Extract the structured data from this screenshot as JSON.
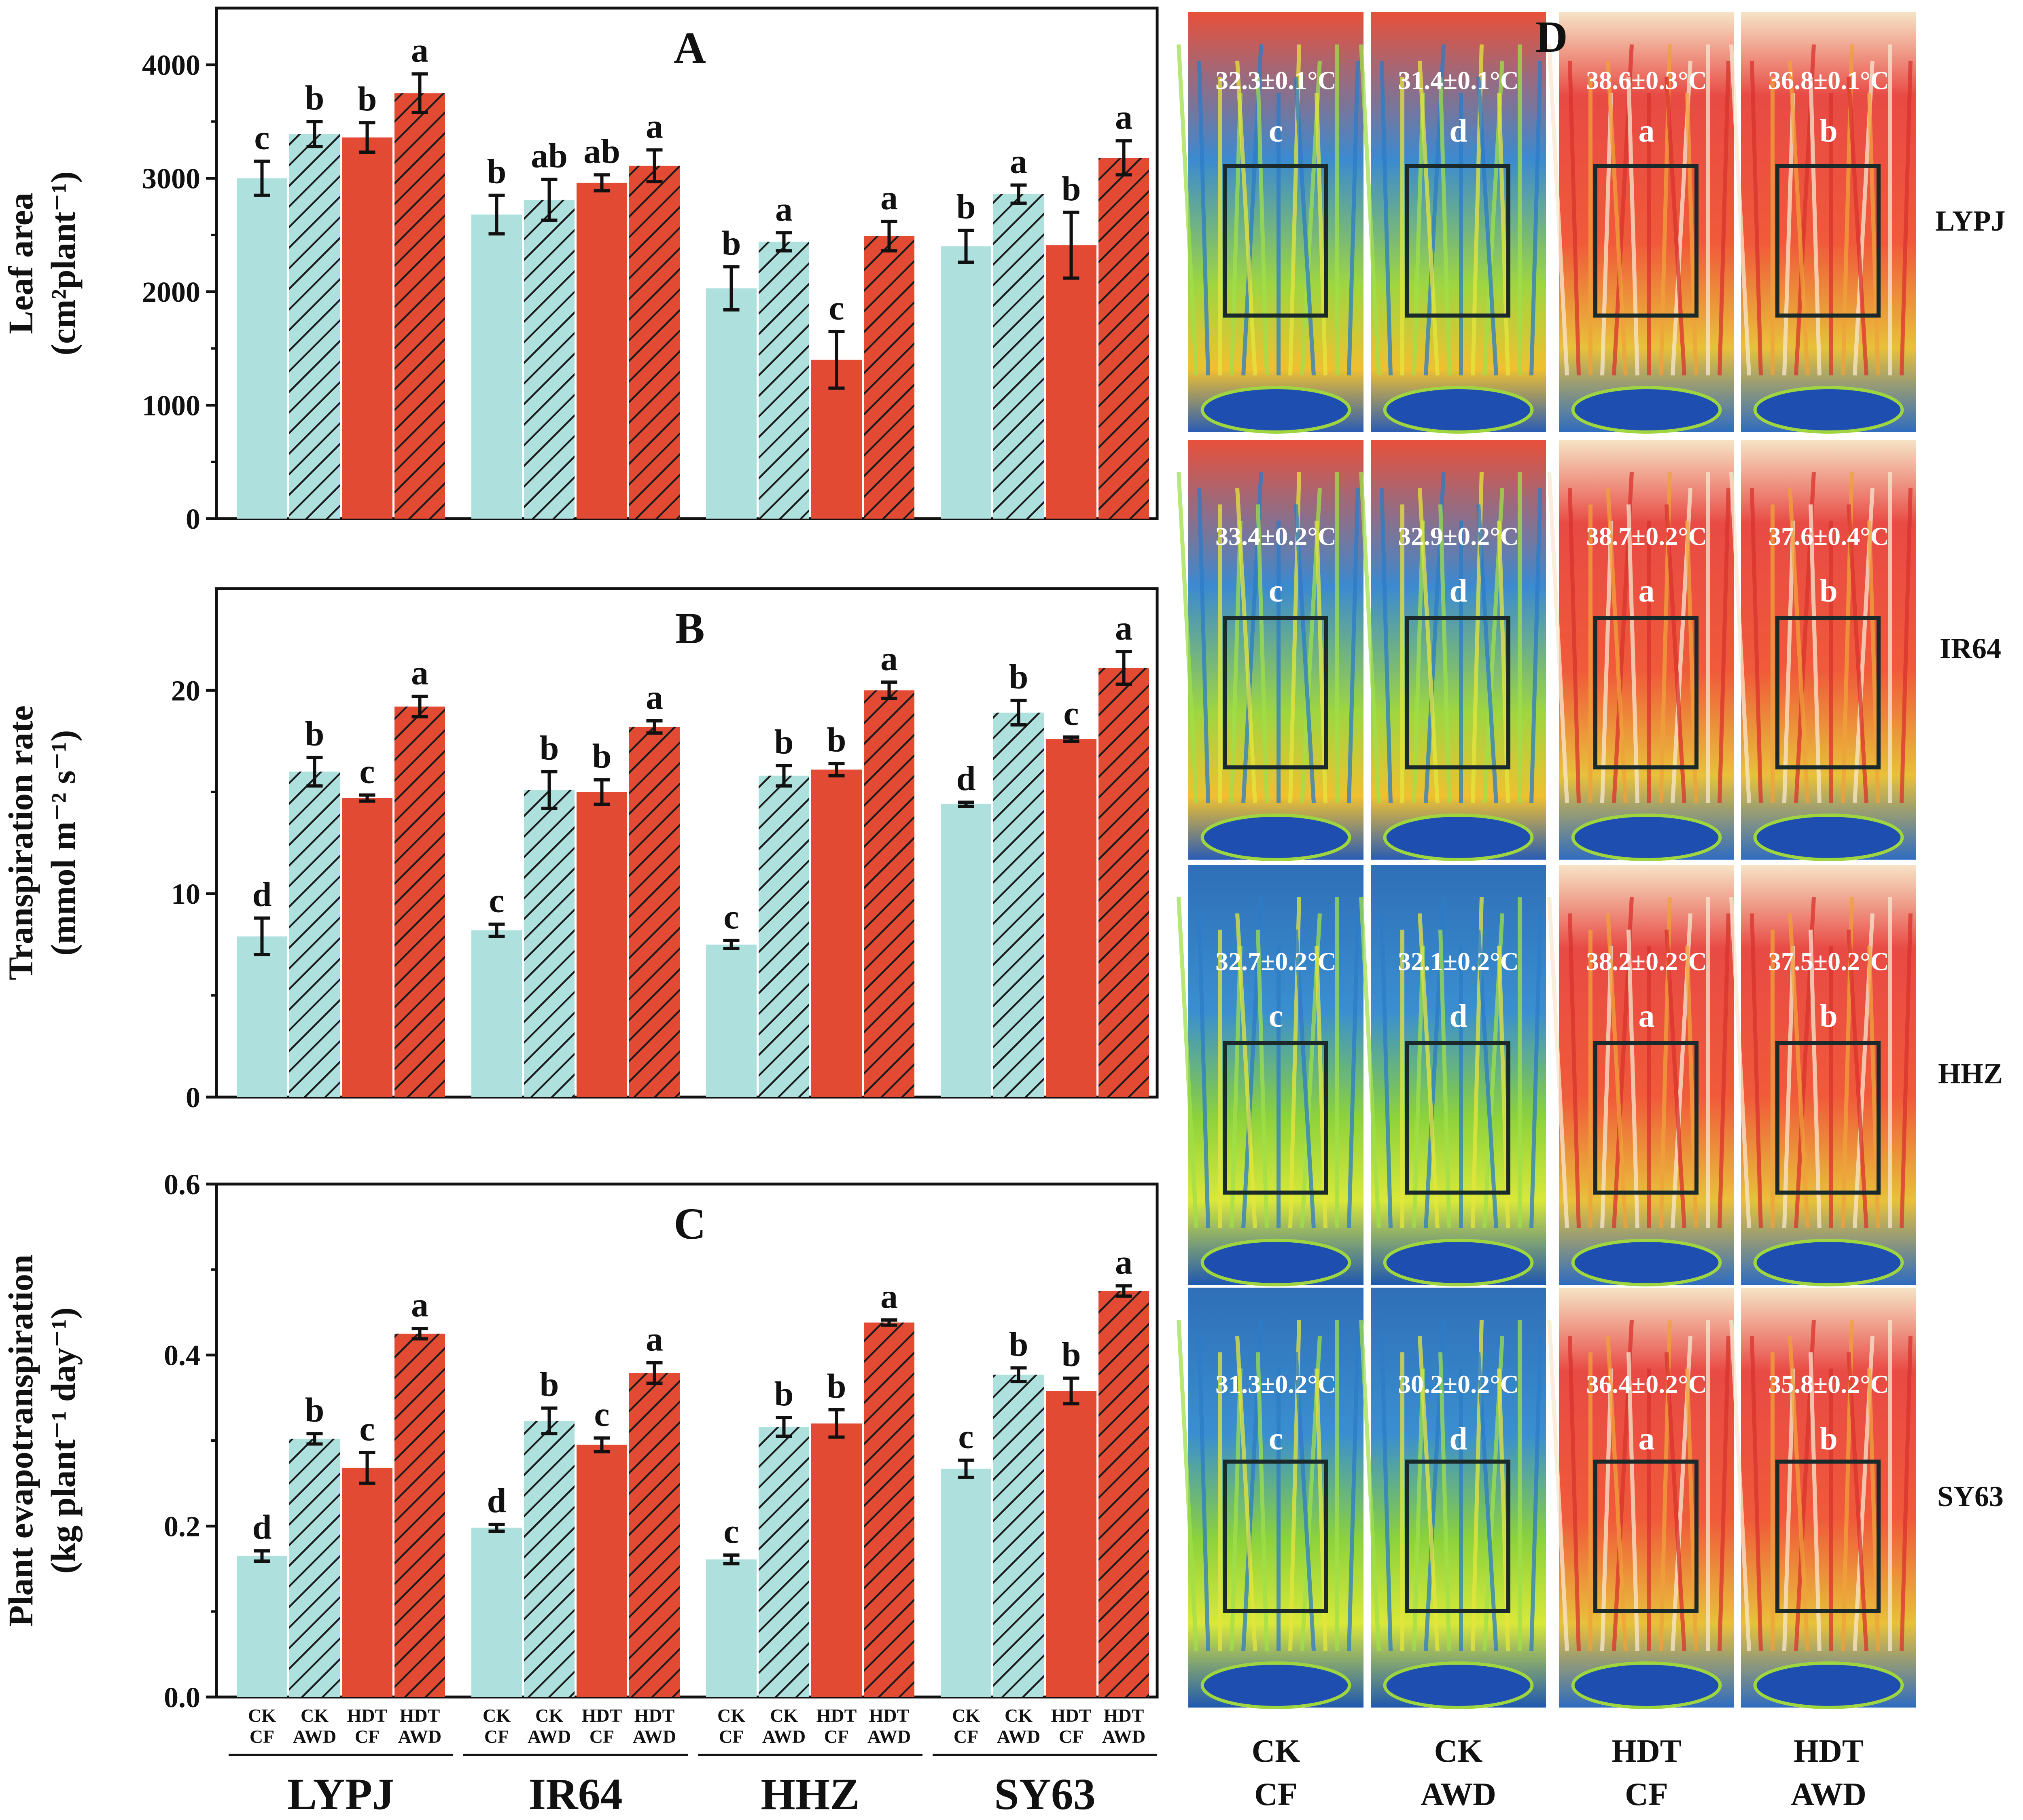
{
  "colors": {
    "ck": "#aee0de",
    "hdt": "#e34a33",
    "axis": "#111111",
    "frame": "#1a2a2a"
  },
  "groups": [
    "LYPJ",
    "IR64",
    "HHZ",
    "SY63"
  ],
  "treatments": [
    {
      "line1": "CK",
      "line2": "CF",
      "color": "ck",
      "hatch": false
    },
    {
      "line1": "CK",
      "line2": "AWD",
      "color": "ck",
      "hatch": true
    },
    {
      "line1": "HDT",
      "line2": "CF",
      "color": "hdt",
      "hatch": false
    },
    {
      "line1": "HDT",
      "line2": "AWD",
      "color": "hdt",
      "hatch": true
    }
  ],
  "chart_data": [
    {
      "type": "bar",
      "panel": "A",
      "ylabel_line1": "Leaf area",
      "ylabel_line2": "(cm²plant⁻¹)",
      "ylim": [
        0,
        4500
      ],
      "yticks": [
        0,
        1000,
        2000,
        3000,
        4000
      ],
      "ytick_labels": [
        "0",
        "1000",
        "2000",
        "3000",
        "4000"
      ],
      "values": [
        [
          3000,
          3390,
          3360,
          3750
        ],
        [
          2680,
          2810,
          2960,
          3110
        ],
        [
          2030,
          2440,
          1400,
          2490
        ],
        [
          2400,
          2860,
          2410,
          3180
        ]
      ],
      "errors": [
        [
          150,
          110,
          130,
          170
        ],
        [
          170,
          180,
          70,
          140
        ],
        [
          190,
          80,
          250,
          130
        ],
        [
          140,
          80,
          290,
          150
        ]
      ],
      "letters": [
        [
          "c",
          "b",
          "b",
          "a"
        ],
        [
          "b",
          "ab",
          "ab",
          "a"
        ],
        [
          "b",
          "a",
          "c",
          "a"
        ],
        [
          "b",
          "a",
          "b",
          "a"
        ]
      ]
    },
    {
      "type": "bar",
      "panel": "B",
      "ylabel_line1": "Transpiration rate",
      "ylabel_line2": "(mmol m⁻² s⁻¹)",
      "ylim": [
        0,
        25
      ],
      "yticks": [
        0,
        10,
        20
      ],
      "ytick_labels": [
        "0",
        "10",
        "20"
      ],
      "values": [
        [
          7.9,
          16.0,
          14.7,
          19.2
        ],
        [
          8.2,
          15.1,
          15.0,
          18.2
        ],
        [
          7.5,
          15.8,
          16.1,
          20.0
        ],
        [
          14.4,
          18.9,
          17.6,
          21.1
        ]
      ],
      "errors": [
        [
          0.9,
          0.7,
          0.15,
          0.5
        ],
        [
          0.3,
          0.9,
          0.6,
          0.3
        ],
        [
          0.2,
          0.5,
          0.3,
          0.4
        ],
        [
          0.1,
          0.6,
          0.1,
          0.8
        ]
      ],
      "letters": [
        [
          "d",
          "b",
          "c",
          "a"
        ],
        [
          "c",
          "b",
          "b",
          "a"
        ],
        [
          "c",
          "b",
          "b",
          "a"
        ],
        [
          "d",
          "b",
          "c",
          "a"
        ]
      ]
    },
    {
      "type": "bar",
      "panel": "C",
      "ylabel_line1": "Plant evapotranspiration",
      "ylabel_line2": "(kg plant⁻¹ day⁻¹)",
      "ylim": [
        0,
        0.6
      ],
      "yticks": [
        0,
        0.2,
        0.4,
        0.6
      ],
      "ytick_labels": [
        "0.0",
        "0.2",
        "0.4",
        "0.6"
      ],
      "values": [
        [
          0.165,
          0.302,
          0.268,
          0.425
        ],
        [
          0.198,
          0.323,
          0.295,
          0.379
        ],
        [
          0.161,
          0.316,
          0.32,
          0.438
        ],
        [
          0.267,
          0.377,
          0.358,
          0.475
        ]
      ],
      "errors": [
        [
          0.006,
          0.006,
          0.018,
          0.006
        ],
        [
          0.004,
          0.015,
          0.008,
          0.012
        ],
        [
          0.005,
          0.011,
          0.016,
          0.003
        ],
        [
          0.01,
          0.008,
          0.015,
          0.006
        ]
      ],
      "letters": [
        [
          "d",
          "b",
          "c",
          "a"
        ],
        [
          "d",
          "b",
          "c",
          "a"
        ],
        [
          "c",
          "b",
          "b",
          "a"
        ],
        [
          "c",
          "b",
          "b",
          "a"
        ]
      ]
    }
  ],
  "thermal": {
    "panel": "D",
    "rows": [
      {
        "label": "LYPJ",
        "temps": [
          "32.3±0.1°C",
          "31.4±0.1°C",
          "38.6±0.3°C",
          "36.8±0.1°C"
        ],
        "letters": [
          "c",
          "d",
          "a",
          "b"
        ]
      },
      {
        "label": "IR64",
        "temps": [
          "33.4±0.2°C",
          "32.9±0.2°C",
          "38.7±0.2°C",
          "37.6±0.4°C"
        ],
        "letters": [
          "c",
          "d",
          "a",
          "b"
        ]
      },
      {
        "label": "HHZ",
        "temps": [
          "32.7±0.2°C",
          "32.1±0.2°C",
          "38.2±0.2°C",
          "37.5±0.2°C"
        ],
        "letters": [
          "c",
          "d",
          "a",
          "b"
        ]
      },
      {
        "label": "SY63",
        "temps": [
          "31.3±0.2°C",
          "30.2±0.2°C",
          "36.4±0.2°C",
          "35.8±0.2°C"
        ],
        "letters": [
          "c",
          "d",
          "a",
          "b"
        ]
      }
    ],
    "columns": [
      {
        "line1": "CK",
        "line2": "CF",
        "scheme": "cool"
      },
      {
        "line1": "CK",
        "line2": "AWD",
        "scheme": "cool"
      },
      {
        "line1": "HDT",
        "line2": "CF",
        "scheme": "hot"
      },
      {
        "line1": "HDT",
        "line2": "AWD",
        "scheme": "hot"
      }
    ]
  }
}
